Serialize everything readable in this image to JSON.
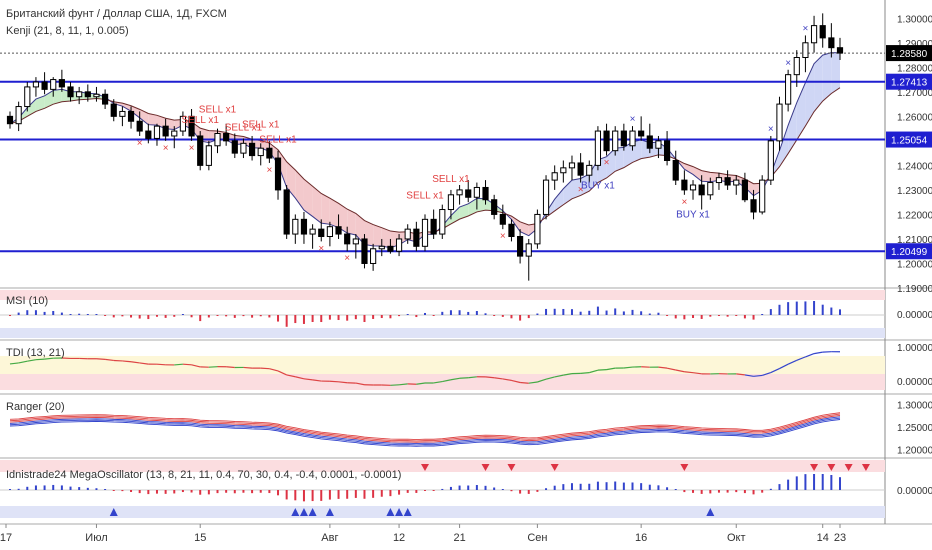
{
  "header": {
    "title": "Британский фунт / Доллар США, 1Д, FXCM",
    "indicator": "Kenji (21, 8, 11, 1, 0.005)"
  },
  "price_axis": {
    "ticks": [
      "1.30000",
      "1.29000",
      "1.28000",
      "1.27000",
      "1.26000",
      "1.25000",
      "1.24000",
      "1.23000",
      "1.22000",
      "1.21000",
      "1.20000",
      "1.19000"
    ],
    "last_price": "1.28580",
    "levels": [
      "1.27413",
      "1.25054",
      "1.20499"
    ]
  },
  "x_axis": {
    "labels": [
      "17",
      "Июл",
      "15",
      "Авг",
      "12",
      "21",
      "Сен",
      "16",
      "Окт",
      "14",
      "23"
    ]
  },
  "panes": {
    "msi": {
      "title": "MSI (10)",
      "tick": "0.00000"
    },
    "tdi": {
      "title": "TDI (13, 21)",
      "ticks": [
        "1.00000",
        "0.00000"
      ]
    },
    "ranger": {
      "title": "Ranger (20)",
      "ticks": [
        "1.30000",
        "1.25000",
        "1.20000"
      ]
    },
    "mega": {
      "title": "Idnistrade24 MegaOscillator (13, 8, 21, 11, 0.4, 70, 30, 0.4, -0.4, 0.0001, -0.0001)",
      "tick": "0.00000"
    }
  },
  "signals": {
    "sell": [
      "SELL x1",
      "SELL x1",
      "SELL x1",
      "SELL x1",
      "SELL x1",
      "SELL x1",
      "SELL x1"
    ],
    "buy": [
      "BUY x1",
      "BUY x1"
    ]
  },
  "colors": {
    "up": "#ffffff",
    "down": "#000000",
    "level": "#1f1fd0",
    "sell": "#e04040",
    "buy": "#4040c0",
    "cloud_pink": "#f3c9cc",
    "cloud_blue": "#cfd6f5",
    "cloud_green": "#c9ecc9"
  },
  "chart_data": {
    "type": "candlestick",
    "ylim": [
      1.19,
      1.305
    ],
    "levels": [
      1.27413,
      1.25054,
      1.20499
    ],
    "last": 1.2858,
    "candles": [
      [
        1.26,
        1.262,
        1.255,
        1.257
      ],
      [
        1.257,
        1.266,
        1.254,
        1.264
      ],
      [
        1.264,
        1.274,
        1.262,
        1.272
      ],
      [
        1.272,
        1.276,
        1.268,
        1.274
      ],
      [
        1.274,
        1.278,
        1.269,
        1.271
      ],
      [
        1.271,
        1.276,
        1.268,
        1.275
      ],
      [
        1.275,
        1.279,
        1.27,
        1.272
      ],
      [
        1.272,
        1.274,
        1.266,
        1.268
      ],
      [
        1.268,
        1.272,
        1.265,
        1.27
      ],
      [
        1.27,
        1.273,
        1.266,
        1.268
      ],
      [
        1.268,
        1.272,
        1.266,
        1.269
      ],
      [
        1.269,
        1.271,
        1.263,
        1.265
      ],
      [
        1.265,
        1.267,
        1.258,
        1.26
      ],
      [
        1.26,
        1.264,
        1.256,
        1.262
      ],
      [
        1.262,
        1.264,
        1.255,
        1.258
      ],
      [
        1.258,
        1.262,
        1.252,
        1.254
      ],
      [
        1.254,
        1.257,
        1.249,
        1.251
      ],
      [
        1.251,
        1.257,
        1.248,
        1.256
      ],
      [
        1.256,
        1.259,
        1.25,
        1.252
      ],
      [
        1.252,
        1.256,
        1.247,
        1.254
      ],
      [
        1.254,
        1.262,
        1.252,
        1.26
      ],
      [
        1.26,
        1.263,
        1.25,
        1.252
      ],
      [
        1.252,
        1.254,
        1.238,
        1.24
      ],
      [
        1.24,
        1.25,
        1.238,
        1.248
      ],
      [
        1.248,
        1.255,
        1.245,
        1.253
      ],
      [
        1.253,
        1.257,
        1.248,
        1.25
      ],
      [
        1.25,
        1.253,
        1.243,
        1.245
      ],
      [
        1.245,
        1.251,
        1.243,
        1.249
      ],
      [
        1.249,
        1.252,
        1.242,
        1.244
      ],
      [
        1.244,
        1.249,
        1.24,
        1.247
      ],
      [
        1.247,
        1.25,
        1.241,
        1.243
      ],
      [
        1.243,
        1.246,
        1.226,
        1.23
      ],
      [
        1.23,
        1.232,
        1.21,
        1.212
      ],
      [
        1.212,
        1.22,
        1.208,
        1.218
      ],
      [
        1.218,
        1.221,
        1.208,
        1.212
      ],
      [
        1.212,
        1.216,
        1.206,
        1.214
      ],
      [
        1.214,
        1.218,
        1.209,
        1.211
      ],
      [
        1.211,
        1.217,
        1.207,
        1.215
      ],
      [
        1.215,
        1.22,
        1.21,
        1.212
      ],
      [
        1.212,
        1.215,
        1.205,
        1.208
      ],
      [
        1.208,
        1.212,
        1.202,
        1.21
      ],
      [
        1.21,
        1.212,
        1.198,
        1.2
      ],
      [
        1.2,
        1.208,
        1.197,
        1.206
      ],
      [
        1.206,
        1.21,
        1.203,
        1.207
      ],
      [
        1.207,
        1.21,
        1.204,
        1.205
      ],
      [
        1.205,
        1.212,
        1.203,
        1.21
      ],
      [
        1.21,
        1.216,
        1.208,
        1.214
      ],
      [
        1.214,
        1.217,
        1.205,
        1.207
      ],
      [
        1.207,
        1.22,
        1.205,
        1.218
      ],
      [
        1.218,
        1.222,
        1.21,
        1.212
      ],
      [
        1.212,
        1.224,
        1.21,
        1.222
      ],
      [
        1.222,
        1.23,
        1.218,
        1.228
      ],
      [
        1.228,
        1.232,
        1.224,
        1.23
      ],
      [
        1.23,
        1.234,
        1.225,
        1.227
      ],
      [
        1.227,
        1.233,
        1.222,
        1.231
      ],
      [
        1.231,
        1.234,
        1.224,
        1.226
      ],
      [
        1.226,
        1.228,
        1.218,
        1.22
      ],
      [
        1.22,
        1.224,
        1.214,
        1.216
      ],
      [
        1.216,
        1.218,
        1.209,
        1.211
      ],
      [
        1.211,
        1.214,
        1.2,
        1.203
      ],
      [
        1.203,
        1.21,
        1.193,
        1.208
      ],
      [
        1.208,
        1.222,
        1.206,
        1.22
      ],
      [
        1.22,
        1.236,
        1.218,
        1.234
      ],
      [
        1.234,
        1.24,
        1.23,
        1.237
      ],
      [
        1.237,
        1.242,
        1.233,
        1.239
      ],
      [
        1.239,
        1.244,
        1.234,
        1.241
      ],
      [
        1.241,
        1.245,
        1.233,
        1.236
      ],
      [
        1.236,
        1.242,
        1.233,
        1.24
      ],
      [
        1.24,
        1.256,
        1.238,
        1.254
      ],
      [
        1.254,
        1.257,
        1.244,
        1.246
      ],
      [
        1.246,
        1.256,
        1.244,
        1.254
      ],
      [
        1.254,
        1.257,
        1.246,
        1.248
      ],
      [
        1.248,
        1.256,
        1.246,
        1.254
      ],
      [
        1.254,
        1.26,
        1.25,
        1.252
      ],
      [
        1.252,
        1.257,
        1.245,
        1.247
      ],
      [
        1.247,
        1.252,
        1.243,
        1.25
      ],
      [
        1.25,
        1.254,
        1.24,
        1.242
      ],
      [
        1.242,
        1.246,
        1.232,
        1.234
      ],
      [
        1.234,
        1.238,
        1.228,
        1.23
      ],
      [
        1.23,
        1.234,
        1.226,
        1.232
      ],
      [
        1.232,
        1.236,
        1.222,
        1.228
      ],
      [
        1.228,
        1.235,
        1.226,
        1.233
      ],
      [
        1.233,
        1.237,
        1.23,
        1.235
      ],
      [
        1.235,
        1.238,
        1.23,
        1.232
      ],
      [
        1.232,
        1.236,
        1.228,
        1.234
      ],
      [
        1.234,
        1.237,
        1.225,
        1.226
      ],
      [
        1.226,
        1.23,
        1.218,
        1.221
      ],
      [
        1.221,
        1.236,
        1.22,
        1.234
      ],
      [
        1.234,
        1.252,
        1.232,
        1.25
      ],
      [
        1.25,
        1.268,
        1.246,
        1.265
      ],
      [
        1.265,
        1.279,
        1.262,
        1.277
      ],
      [
        1.277,
        1.287,
        1.272,
        1.284
      ],
      [
        1.284,
        1.293,
        1.278,
        1.29
      ],
      [
        1.29,
        1.301,
        1.286,
        1.297
      ],
      [
        1.297,
        1.302,
        1.288,
        1.292
      ],
      [
        1.292,
        1.298,
        1.284,
        1.288
      ],
      [
        1.288,
        1.292,
        1.283,
        1.2858
      ]
    ]
  }
}
